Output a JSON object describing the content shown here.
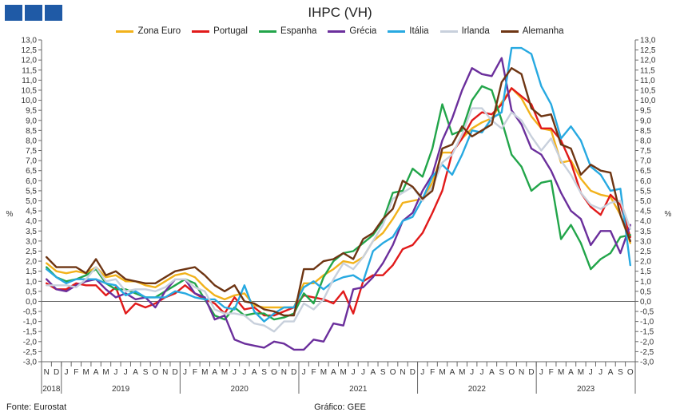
{
  "colors": {
    "zona_euro": "#f2b21b",
    "portugal": "#e11a1a",
    "espanha": "#22a54a",
    "grecia": "#6b2f9c",
    "italia": "#27a9e1",
    "irlanda": "#c8d0dc",
    "alemanha": "#6e3513"
  },
  "footer": {
    "source": "Fonte: Eurostat",
    "credit": "Gráfico: GEE"
  },
  "chart_data": {
    "type": "line",
    "title": "IHPC (VH)",
    "ylabel_left": "%",
    "ylabel_right": "%",
    "ylim": [
      -3.0,
      13.0
    ],
    "ytick_step": 0.5,
    "yticks_labels": [
      "13,0",
      "12,5",
      "12,0",
      "11,5",
      "11,0",
      "10,5",
      "10,0",
      "9,5",
      "9,0",
      "8,5",
      "8,0",
      "7,5",
      "7,0",
      "6,5",
      "6,0",
      "5,5",
      "5,0",
      "4,5",
      "4,0",
      "3,5",
      "3,0",
      "2,5",
      "2,0",
      "1,5",
      "1,0",
      "0,5",
      "0,0",
      "-0,5",
      "-1,0",
      "-1,5",
      "-2,0",
      "-2,5",
      "-3,0"
    ],
    "x": [
      "2018-11",
      "2018-12",
      "2019-01",
      "2019-02",
      "2019-03",
      "2019-04",
      "2019-05",
      "2019-06",
      "2019-07",
      "2019-08",
      "2019-09",
      "2019-10",
      "2019-11",
      "2019-12",
      "2020-01",
      "2020-02",
      "2020-03",
      "2020-04",
      "2020-05",
      "2020-06",
      "2020-07",
      "2020-08",
      "2020-09",
      "2020-10",
      "2020-11",
      "2020-12",
      "2021-01",
      "2021-02",
      "2021-03",
      "2021-04",
      "2021-05",
      "2021-06",
      "2021-07",
      "2021-08",
      "2021-09",
      "2021-10",
      "2021-11",
      "2021-12",
      "2022-01",
      "2022-02",
      "2022-03",
      "2022-04",
      "2022-05",
      "2022-06",
      "2022-07",
      "2022-08",
      "2022-09",
      "2022-10",
      "2022-11",
      "2022-12",
      "2023-01",
      "2023-02",
      "2023-03",
      "2023-04",
      "2023-05",
      "2023-06",
      "2023-07",
      "2023-08",
      "2023-09",
      "2023-10"
    ],
    "month_labels": [
      "N",
      "D",
      "J",
      "F",
      "M",
      "A",
      "M",
      "J",
      "J",
      "A",
      "S",
      "O",
      "N",
      "D",
      "J",
      "F",
      "M",
      "A",
      "M",
      "J",
      "J",
      "A",
      "S",
      "O",
      "N",
      "D",
      "J",
      "F",
      "M",
      "A",
      "M",
      "J",
      "J",
      "A",
      "S",
      "O",
      "N",
      "D",
      "J",
      "F",
      "M",
      "A",
      "M",
      "J",
      "J",
      "A",
      "S",
      "O",
      "N",
      "D",
      "J",
      "F",
      "M",
      "A",
      "M",
      "J",
      "J",
      "A",
      "S",
      "O"
    ],
    "year_labels": [
      {
        "label": "2018",
        "start": 0,
        "end": 1
      },
      {
        "label": "2019",
        "start": 2,
        "end": 13
      },
      {
        "label": "2020",
        "start": 14,
        "end": 25
      },
      {
        "label": "2021",
        "start": 26,
        "end": 37
      },
      {
        "label": "2022",
        "start": 38,
        "end": 49
      },
      {
        "label": "2023",
        "start": 50,
        "end": 59
      }
    ],
    "series": [
      {
        "name": "Zona Euro",
        "key": "zona_euro",
        "values": [
          1.9,
          1.5,
          1.4,
          1.5,
          1.4,
          1.7,
          1.2,
          1.3,
          1.0,
          1.0,
          0.8,
          0.7,
          1.0,
          1.3,
          1.4,
          1.2,
          0.7,
          0.3,
          0.1,
          0.3,
          0.4,
          -0.2,
          -0.3,
          -0.3,
          -0.3,
          -0.3,
          0.9,
          0.9,
          1.3,
          1.6,
          2.0,
          1.9,
          2.2,
          3.0,
          3.4,
          4.1,
          4.9,
          5.0,
          5.1,
          5.9,
          7.4,
          7.4,
          8.1,
          8.6,
          8.9,
          9.1,
          9.9,
          10.6,
          10.1,
          9.2,
          8.6,
          8.5,
          6.9,
          7.0,
          6.1,
          5.5,
          5.3,
          5.2,
          4.3,
          2.9
        ]
      },
      {
        "name": "Portugal",
        "key": "portugal",
        "values": [
          0.9,
          0.6,
          0.6,
          0.9,
          0.8,
          0.8,
          0.3,
          0.7,
          -0.6,
          -0.1,
          -0.3,
          -0.1,
          0.2,
          0.4,
          0.8,
          0.4,
          0.1,
          -0.1,
          -0.6,
          0.2,
          -0.4,
          -0.3,
          -0.7,
          -0.7,
          -0.5,
          -0.3,
          0.3,
          0.2,
          0.1,
          -0.1,
          0.5,
          -0.6,
          1.0,
          1.3,
          1.3,
          1.8,
          2.6,
          2.8,
          3.4,
          4.4,
          5.5,
          7.4,
          8.1,
          9.0,
          9.4,
          9.3,
          9.8,
          10.6,
          10.2,
          9.8,
          8.6,
          8.6,
          8.0,
          6.9,
          5.4,
          4.7,
          4.3,
          5.3,
          4.8,
          3.2
        ]
      },
      {
        "name": "Espanha",
        "key": "espanha",
        "values": [
          1.7,
          1.2,
          1.0,
          1.1,
          1.3,
          1.6,
          0.9,
          0.6,
          0.6,
          0.4,
          0.2,
          0.2,
          0.5,
          0.8,
          1.1,
          0.9,
          0.1,
          -0.7,
          -0.9,
          -0.3,
          -0.7,
          -0.6,
          -0.6,
          -0.9,
          -0.8,
          -0.6,
          0.4,
          -0.1,
          1.2,
          2.0,
          2.4,
          2.5,
          2.9,
          3.3,
          4.0,
          5.4,
          5.5,
          6.6,
          6.2,
          7.6,
          9.8,
          8.3,
          8.5,
          10.0,
          10.7,
          10.5,
          9.0,
          7.3,
          6.7,
          5.5,
          5.9,
          6.0,
          3.1,
          3.8,
          2.9,
          1.6,
          2.1,
          2.4,
          3.2,
          3.3
        ]
      },
      {
        "name": "Grécia",
        "key": "grecia",
        "values": [
          1.1,
          0.6,
          0.5,
          0.8,
          1.0,
          1.1,
          0.6,
          0.2,
          0.4,
          0.1,
          0.2,
          -0.3,
          0.5,
          1.1,
          1.1,
          0.4,
          0.2,
          -0.9,
          -0.7,
          -1.9,
          -2.1,
          -2.2,
          -2.3,
          -2.0,
          -2.1,
          -2.4,
          -2.4,
          -1.9,
          -2.0,
          -1.1,
          -1.2,
          0.6,
          0.7,
          1.2,
          1.9,
          2.8,
          4.0,
          4.4,
          5.5,
          6.3,
          8.0,
          9.1,
          10.5,
          11.6,
          11.3,
          11.2,
          12.1,
          9.5,
          8.8,
          7.6,
          7.3,
          6.5,
          5.4,
          4.5,
          4.1,
          2.8,
          3.5,
          3.5,
          2.4,
          3.8
        ]
      },
      {
        "name": "Itália",
        "key": "italia",
        "values": [
          1.6,
          1.2,
          0.9,
          1.1,
          1.1,
          1.1,
          0.9,
          0.8,
          0.3,
          0.5,
          0.2,
          0.2,
          0.2,
          0.5,
          0.4,
          0.2,
          0.1,
          0.1,
          -0.3,
          -0.4,
          0.8,
          -0.5,
          -1.0,
          -0.6,
          -0.3,
          -0.3,
          0.7,
          1.0,
          0.6,
          1.0,
          1.2,
          1.3,
          1.0,
          2.5,
          2.9,
          3.2,
          4.0,
          4.2,
          5.1,
          6.2,
          6.8,
          6.3,
          7.3,
          8.5,
          8.4,
          9.1,
          9.4,
          12.6,
          12.6,
          12.3,
          10.7,
          9.8,
          8.1,
          8.7,
          8.0,
          6.7,
          6.3,
          5.5,
          5.6,
          1.8
        ]
      },
      {
        "name": "Irlanda",
        "key": "irlanda",
        "values": [
          0.8,
          0.8,
          0.8,
          0.7,
          1.1,
          1.7,
          1.0,
          1.1,
          0.5,
          0.6,
          0.6,
          0.5,
          0.7,
          1.1,
          1.1,
          0.7,
          0.5,
          -0.4,
          -0.6,
          -0.6,
          -0.7,
          -1.1,
          -1.2,
          -1.5,
          -1.0,
          -1.0,
          -0.1,
          -0.4,
          0.1,
          1.1,
          1.9,
          1.6,
          2.2,
          3.0,
          3.8,
          5.1,
          5.4,
          5.7,
          5.0,
          5.7,
          6.9,
          7.3,
          8.3,
          9.6,
          9.6,
          9.0,
          8.6,
          9.4,
          9.0,
          8.2,
          7.5,
          8.1,
          7.0,
          6.3,
          5.4,
          4.8,
          4.6,
          4.9,
          5.0,
          3.6
        ]
      },
      {
        "name": "Alemanha",
        "key": "alemanha",
        "values": [
          2.2,
          1.7,
          1.7,
          1.7,
          1.4,
          2.1,
          1.3,
          1.5,
          1.1,
          1.0,
          0.9,
          0.9,
          1.2,
          1.5,
          1.6,
          1.7,
          1.3,
          0.8,
          0.5,
          0.8,
          0.0,
          -0.1,
          -0.4,
          -0.5,
          -0.7,
          -0.7,
          1.6,
          1.6,
          2.0,
          2.1,
          2.4,
          2.1,
          3.1,
          3.4,
          4.1,
          4.6,
          6.0,
          5.7,
          5.1,
          5.5,
          7.6,
          7.8,
          8.7,
          8.2,
          8.5,
          8.8,
          10.9,
          11.6,
          11.3,
          9.6,
          9.2,
          9.3,
          7.8,
          7.6,
          6.3,
          6.8,
          6.5,
          6.4,
          4.3,
          3.0
        ]
      }
    ],
    "legend_position": "top-center",
    "grid": false
  }
}
